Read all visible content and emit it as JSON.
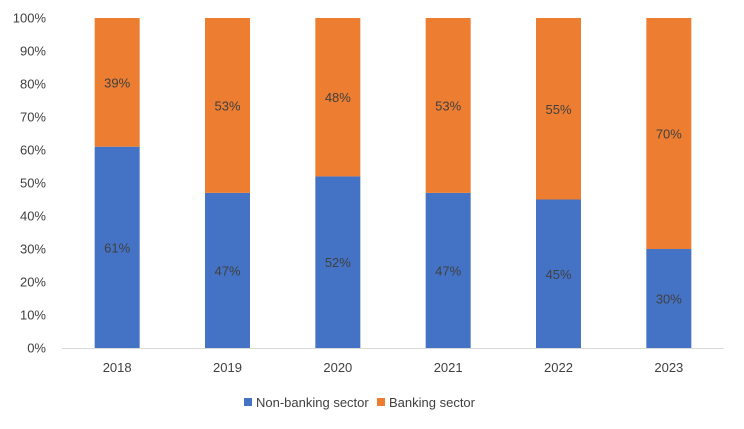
{
  "chart_data": {
    "type": "bar",
    "stacked": true,
    "categories": [
      "2018",
      "2019",
      "2020",
      "2021",
      "2022",
      "2023"
    ],
    "series": [
      {
        "name": "Non-banking sector",
        "color": "#4472C4",
        "values": [
          61,
          47,
          52,
          47,
          45,
          30
        ],
        "labels": [
          "61%",
          "47%",
          "52%",
          "47%",
          "45%",
          "30%"
        ]
      },
      {
        "name": "Banking sector",
        "color": "#ED7D31",
        "values": [
          39,
          53,
          48,
          53,
          55,
          70
        ],
        "labels": [
          "39%",
          "53%",
          "48%",
          "53%",
          "55%",
          "70%"
        ]
      }
    ],
    "ylim": [
      0,
      100
    ],
    "yticks": [
      "0%",
      "10%",
      "20%",
      "30%",
      "40%",
      "50%",
      "60%",
      "70%",
      "80%",
      "90%",
      "100%"
    ],
    "legend": "bottom",
    "grid": false
  }
}
